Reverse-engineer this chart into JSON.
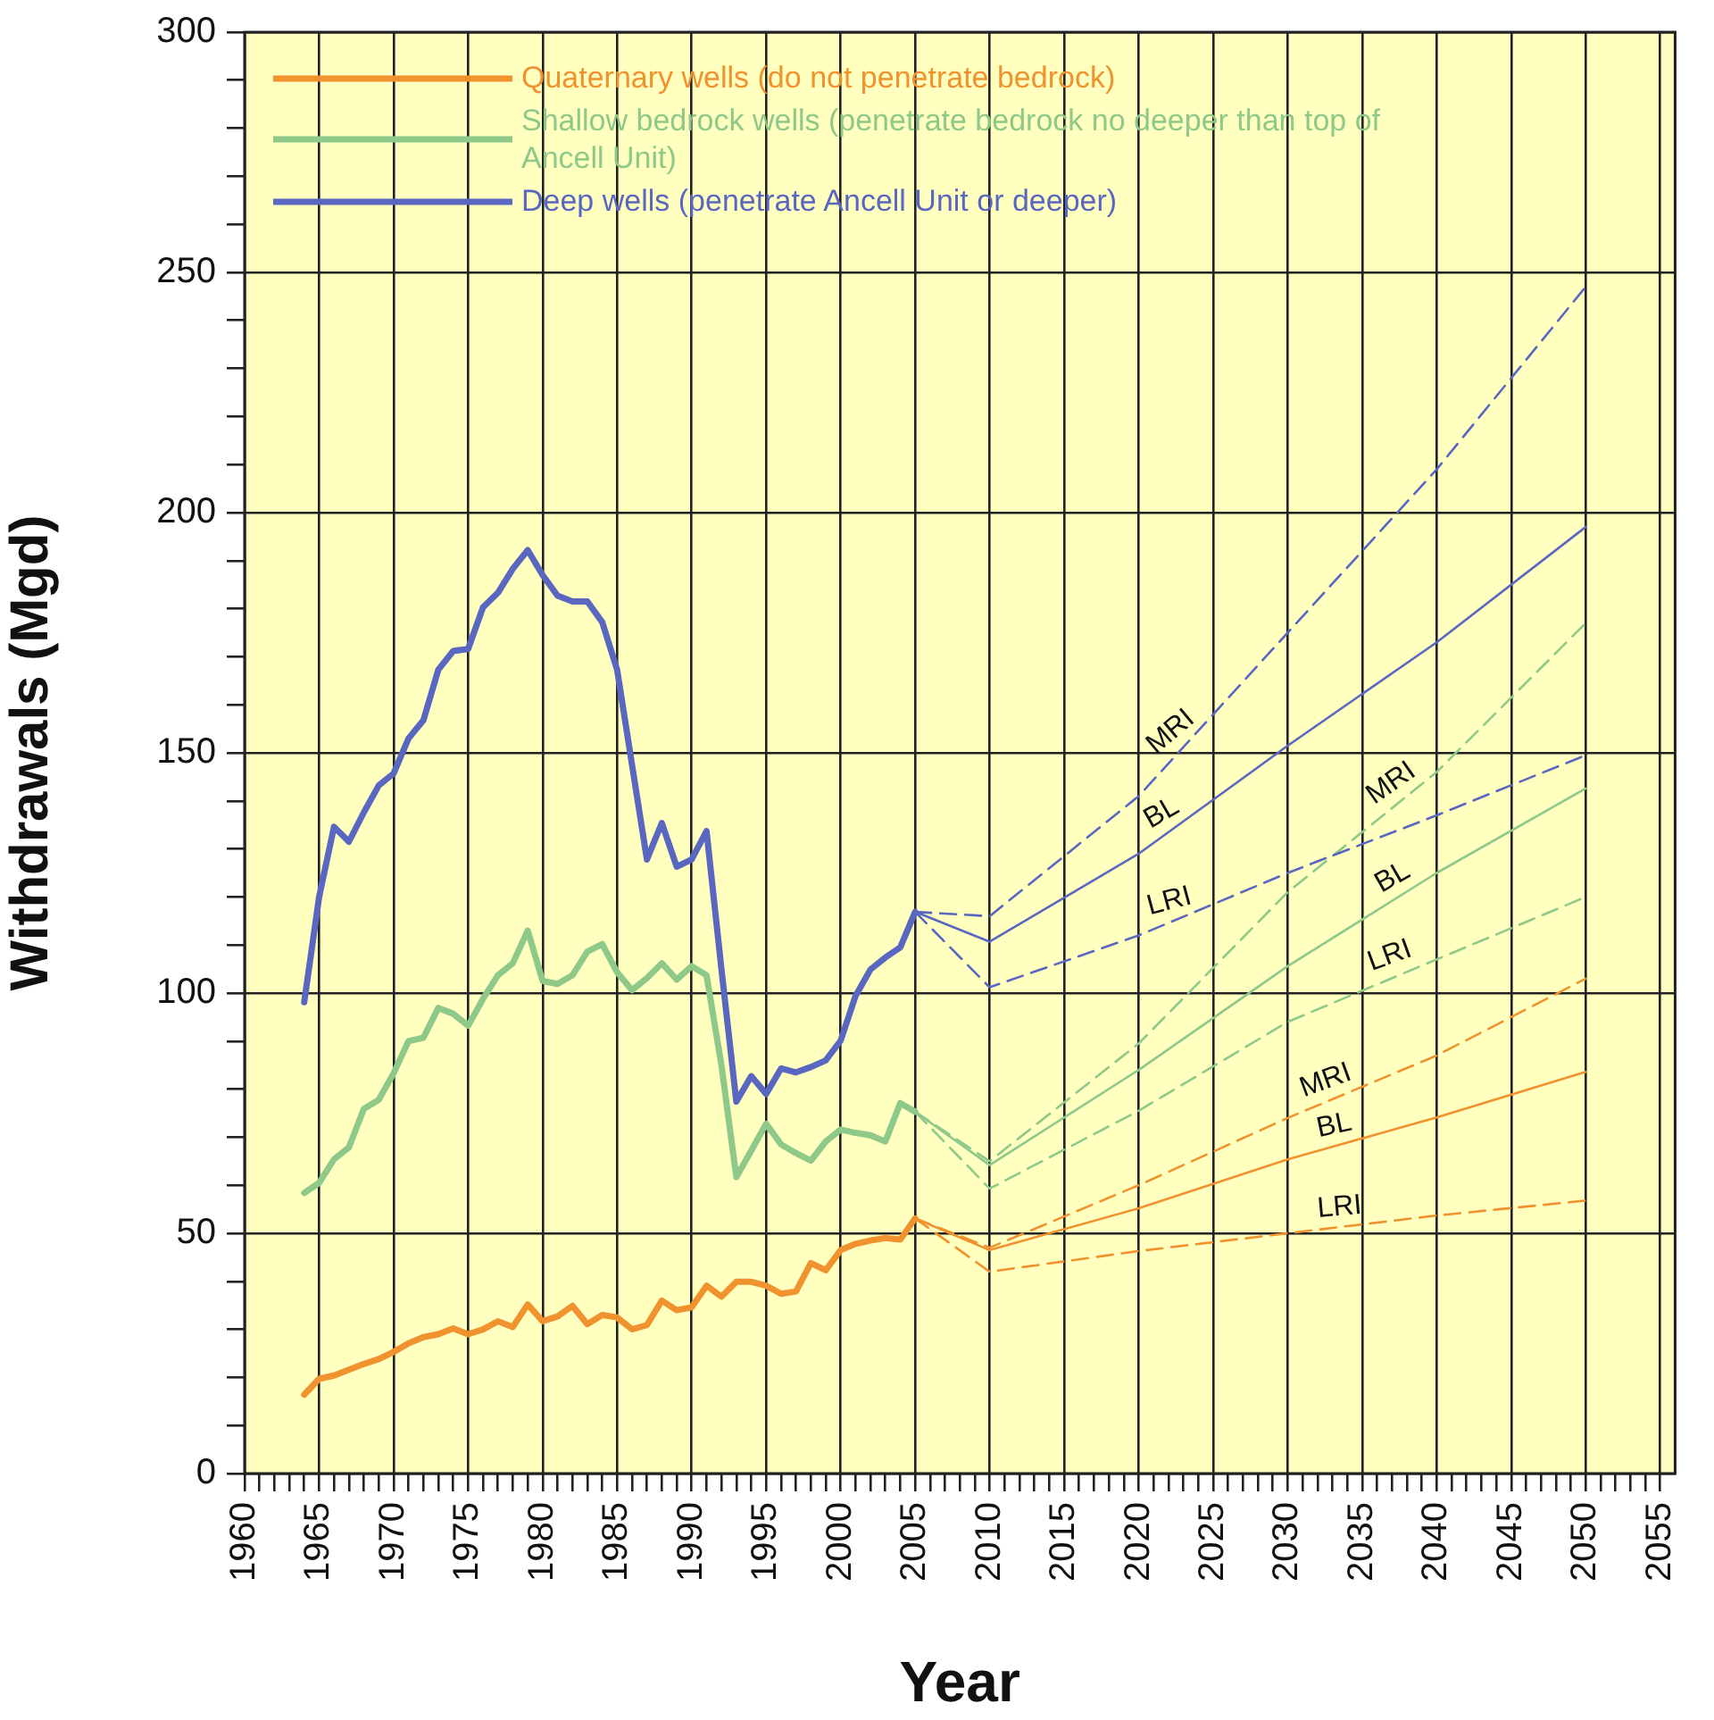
{
  "chart_data": {
    "type": "line",
    "xlabel": "Year",
    "ylabel": "Withdrawals (Mgd)",
    "xlim": [
      1960,
      2056
    ],
    "ylim": [
      0,
      300
    ],
    "xticks": [
      1960,
      {
        "value": 1961,
        "label": null
      },
      {
        "value": 1962,
        "label": null
      },
      {
        "value": 1963,
        "label": null
      },
      {
        "value": 1964,
        "label": null
      },
      1965,
      {
        "value": 1966,
        "label": null
      },
      {
        "value": 1967,
        "label": null
      },
      {
        "value": 1968,
        "label": null
      },
      {
        "value": 1969,
        "label": null
      },
      1970,
      {
        "value": 1971,
        "label": null
      },
      {
        "value": 1972,
        "label": null
      },
      {
        "value": 1973,
        "label": null
      },
      {
        "value": 1974,
        "label": null
      },
      1975,
      {
        "value": 1976,
        "label": null
      },
      {
        "value": 1977,
        "label": null
      },
      {
        "value": 1978,
        "label": null
      },
      {
        "value": 1979,
        "label": null
      },
      1980,
      {
        "value": 1981,
        "label": null
      },
      {
        "value": 1982,
        "label": null
      },
      {
        "value": 1983,
        "label": null
      },
      {
        "value": 1984,
        "label": null
      },
      1985,
      {
        "value": 1986,
        "label": null
      },
      {
        "value": 1987,
        "label": null
      },
      {
        "value": 1988,
        "label": null
      },
      {
        "value": 1989,
        "label": null
      },
      1990,
      {
        "value": 1991,
        "label": null
      },
      {
        "value": 1992,
        "label": null
      },
      {
        "value": 1993,
        "label": null
      },
      {
        "value": 1994,
        "label": null
      },
      1995,
      {
        "value": 1996,
        "label": null
      },
      {
        "value": 1997,
        "label": null
      },
      {
        "value": 1998,
        "label": null
      },
      {
        "value": 1999,
        "label": null
      },
      2000,
      {
        "value": 2001,
        "label": null
      },
      {
        "value": 2002,
        "label": null
      },
      {
        "value": 2003,
        "label": null
      },
      {
        "value": 2004,
        "label": null
      },
      2005,
      {
        "value": 2006,
        "label": null
      },
      {
        "value": 2007,
        "label": null
      },
      {
        "value": 2008,
        "label": null
      },
      {
        "value": 2009,
        "label": null
      },
      2010,
      {
        "value": 2011,
        "label": null
      },
      {
        "value": 2012,
        "label": null
      },
      {
        "value": 2013,
        "label": null
      },
      {
        "value": 2014,
        "label": null
      },
      2015,
      {
        "value": 2016,
        "label": null
      },
      {
        "value": 2017,
        "label": null
      },
      {
        "value": 2018,
        "label": null
      },
      {
        "value": 2019,
        "label": null
      },
      2020,
      {
        "value": 2021,
        "label": null
      },
      {
        "value": 2022,
        "label": null
      },
      {
        "value": 2023,
        "label": null
      },
      {
        "value": 2024,
        "label": null
      },
      2025,
      {
        "value": 2026,
        "label": null
      },
      {
        "value": 2027,
        "label": null
      },
      {
        "value": 2028,
        "label": null
      },
      {
        "value": 2029,
        "label": null
      },
      2030,
      {
        "value": 2031,
        "label": null
      },
      {
        "value": 2032,
        "label": null
      },
      {
        "value": 2033,
        "label": null
      },
      {
        "value": 2034,
        "label": null
      },
      2035,
      {
        "value": 2036,
        "label": null
      },
      {
        "value": 2037,
        "label": null
      },
      {
        "value": 2038,
        "label": null
      },
      {
        "value": 2039,
        "label": null
      },
      2040,
      {
        "value": 2041,
        "label": null
      },
      {
        "value": 2042,
        "label": null
      },
      {
        "value": 2043,
        "label": null
      },
      {
        "value": 2044,
        "label": null
      },
      2045,
      {
        "value": 2046,
        "label": null
      },
      {
        "value": 2047,
        "label": null
      },
      {
        "value": 2048,
        "label": null
      },
      {
        "value": 2049,
        "label": null
      },
      2050,
      {
        "value": 2051,
        "label": null
      },
      {
        "value": 2052,
        "label": null
      },
      {
        "value": 2053,
        "label": null
      },
      {
        "value": 2054,
        "label": null
      },
      2055
    ],
    "yticks": [
      0,
      {
        "value": 10,
        "label": null
      },
      {
        "value": 20,
        "label": null
      },
      {
        "value": 30,
        "label": null
      },
      {
        "value": 40,
        "label": null
      },
      50,
      {
        "value": 60,
        "label": null
      },
      {
        "value": 70,
        "label": null
      },
      {
        "value": 80,
        "label": null
      },
      {
        "value": 90,
        "label": null
      },
      100,
      {
        "value": 110,
        "label": null
      },
      {
        "value": 120,
        "label": null
      },
      {
        "value": 130,
        "label": null
      },
      {
        "value": 140,
        "label": null
      },
      150,
      {
        "value": 160,
        "label": null
      },
      {
        "value": 170,
        "label": null
      },
      {
        "value": 180,
        "label": null
      },
      {
        "value": 190,
        "label": null
      },
      200,
      {
        "value": 210,
        "label": null
      },
      {
        "value": 220,
        "label": null
      },
      {
        "value": 230,
        "label": null
      },
      {
        "value": 240,
        "label": null
      },
      250,
      {
        "value": 260,
        "label": null
      },
      {
        "value": 270,
        "label": null
      },
      {
        "value": 280,
        "label": null
      },
      {
        "value": 290,
        "label": null
      },
      300
    ],
    "grid": true,
    "legend": "top left",
    "series": [
      {
        "name": "Quaternary wells (do not penetrate bedrock)",
        "color": "#f0922e",
        "x": [
          1964,
          1965,
          1966,
          1967,
          1968,
          1969,
          1970,
          1971,
          1972,
          1973,
          1974,
          1975,
          1976,
          1977,
          1978,
          1979,
          1980,
          1981,
          1982,
          1983,
          1984,
          1985,
          1986,
          1987,
          1988,
          1989,
          1990,
          1991,
          1992,
          1993,
          1994,
          1995,
          1996,
          1997,
          1998,
          1999,
          2000,
          2001,
          2002,
          2003,
          2004,
          2005
        ],
        "values": [
          16.4,
          19.7,
          20.4,
          21.6,
          22.8,
          23.8,
          25.3,
          27.1,
          28.4,
          29,
          30.2,
          29,
          30,
          31.7,
          30.5,
          35.2,
          31.7,
          32.7,
          34.9,
          31.1,
          33,
          32.5,
          30,
          30.9,
          36,
          34,
          34.6,
          39.1,
          36.8,
          39.9,
          39.9,
          39.1,
          37.4,
          37.9,
          43.8,
          42.3,
          46.5,
          47.8,
          48.5,
          49,
          48.7,
          53.1
        ]
      },
      {
        "name": "Shallow bedrock wells (penetrate bedrock no deeper than top of Ancell Unit)",
        "color": "#8ec98a",
        "x": [
          1964,
          1965,
          1966,
          1967,
          1968,
          1969,
          1970,
          1971,
          1972,
          1973,
          1974,
          1975,
          1976,
          1977,
          1978,
          1979,
          1980,
          1981,
          1982,
          1983,
          1984,
          1985,
          1986,
          1987,
          1988,
          1989,
          1990,
          1991,
          1992,
          1993,
          1994,
          1995,
          1996,
          1997,
          1998,
          1999,
          2000,
          2001,
          2002,
          2003,
          2004,
          2005
        ],
        "values": [
          58.4,
          60.5,
          65.4,
          67.9,
          75.9,
          77.8,
          83.3,
          90,
          90.7,
          96.9,
          95.7,
          93.2,
          98.8,
          103.7,
          106.2,
          113,
          102.5,
          101.9,
          103.7,
          108.6,
          110.2,
          104.3,
          100.6,
          103.1,
          106.2,
          102.8,
          105.6,
          103.7,
          85,
          61.7,
          67.2,
          72.8,
          68.5,
          66.7,
          65.1,
          69.1,
          71.6,
          70.9,
          70.4,
          69.1,
          77.1,
          75.3
        ]
      },
      {
        "name": "Deep wells (penetrate Ancell Unit or deeper)",
        "color": "#5a67c0",
        "x": [
          1964,
          1965,
          1966,
          1967,
          1968,
          1969,
          1970,
          1971,
          1972,
          1973,
          1974,
          1975,
          1976,
          1977,
          1978,
          1979,
          1980,
          1981,
          1982,
          1983,
          1984,
          1985,
          1986,
          1987,
          1988,
          1989,
          1990,
          1991,
          1992,
          1993,
          1994,
          1995,
          1996,
          1997,
          1998,
          1999,
          2000,
          2001,
          2002,
          2003,
          2004,
          2005
        ],
        "values": [
          98.1,
          120,
          134.6,
          131.5,
          137.6,
          143.2,
          145.7,
          153,
          156.8,
          167.3,
          171.2,
          171.6,
          180.3,
          183.3,
          188.3,
          192.2,
          187,
          182.7,
          181.5,
          181.5,
          177.2,
          167.3,
          147.5,
          127.8,
          135.4,
          126.3,
          127.8,
          133.7,
          105,
          77.4,
          82.7,
          79,
          84.3,
          83.5,
          84.6,
          86,
          90.1,
          99.4,
          104.9,
          107.4,
          109.5,
          116.9
        ]
      },
      {
        "color": "#5a67c0",
        "line_style": "dashed",
        "x": [
          2005,
          2010,
          2020,
          2030,
          2040,
          2050
        ],
        "values": [
          116.9,
          116,
          141,
          175,
          209,
          247
        ]
      },
      {
        "color": "#5a67c0",
        "x": [
          2005,
          2010,
          2020,
          2030,
          2040,
          2050
        ],
        "values": [
          116.9,
          110.7,
          129,
          151.5,
          173,
          197
        ]
      },
      {
        "color": "#5a67c0",
        "line_style": "dashed",
        "x": [
          2005,
          2010,
          2020,
          2030,
          2040,
          2050
        ],
        "values": [
          116.9,
          101.2,
          112,
          125,
          137,
          149.5
        ]
      },
      {
        "color": "#8ec98a",
        "line_style": "dashed",
        "x": [
          2005,
          2010,
          2020,
          2030,
          2040,
          2050
        ],
        "values": [
          75.3,
          65,
          89.5,
          121,
          146,
          177
        ]
      },
      {
        "color": "#8ec98a",
        "x": [
          2005,
          2010,
          2020,
          2030,
          2040,
          2050
        ],
        "values": [
          75.3,
          64.2,
          84,
          105.6,
          125,
          142.6
        ]
      },
      {
        "color": "#8ec98a",
        "line_style": "dashed",
        "x": [
          2005,
          2010,
          2020,
          2030,
          2040,
          2050
        ],
        "values": [
          75.3,
          59.3,
          75.5,
          94,
          107,
          120
        ]
      },
      {
        "color": "#f0922e",
        "line_style": "dashed",
        "x": [
          2005,
          2010,
          2020,
          2030,
          2040,
          2050
        ],
        "values": [
          53.1,
          47,
          60,
          74,
          87,
          103
        ]
      },
      {
        "color": "#f0922e",
        "x": [
          2005,
          2010,
          2020,
          2030,
          2040,
          2050
        ],
        "values": [
          53.1,
          46.5,
          55.2,
          65.4,
          74.1,
          83.6
        ]
      },
      {
        "color": "#f0922e",
        "line_style": "dashed",
        "x": [
          2005,
          2010,
          2020,
          2030,
          2040,
          2050
        ],
        "values": [
          53.1,
          42,
          46.3,
          50,
          53.7,
          56.8
        ]
      }
    ],
    "annotations": [
      {
        "text": "MRI",
        "x": 2023,
        "y": 151.2
      },
      {
        "text": "BL",
        "x": 2022.2,
        "y": 133.9
      },
      {
        "text": "LRI",
        "x": 2022.4,
        "y": 115.1
      },
      {
        "text": "MRI",
        "x": 2037.7,
        "y": 140.3
      },
      {
        "text": "BL",
        "x": 2037.7,
        "y": 120.5
      },
      {
        "text": "LRI",
        "x": 2037.3,
        "y": 103.9
      },
      {
        "text": "MRI",
        "x": 2033,
        "y": 77.9
      },
      {
        "text": "BL",
        "x": 2033.4,
        "y": 68.4
      },
      {
        "text": "LRI",
        "x": 2033.6,
        "y": 51.3
      }
    ]
  }
}
